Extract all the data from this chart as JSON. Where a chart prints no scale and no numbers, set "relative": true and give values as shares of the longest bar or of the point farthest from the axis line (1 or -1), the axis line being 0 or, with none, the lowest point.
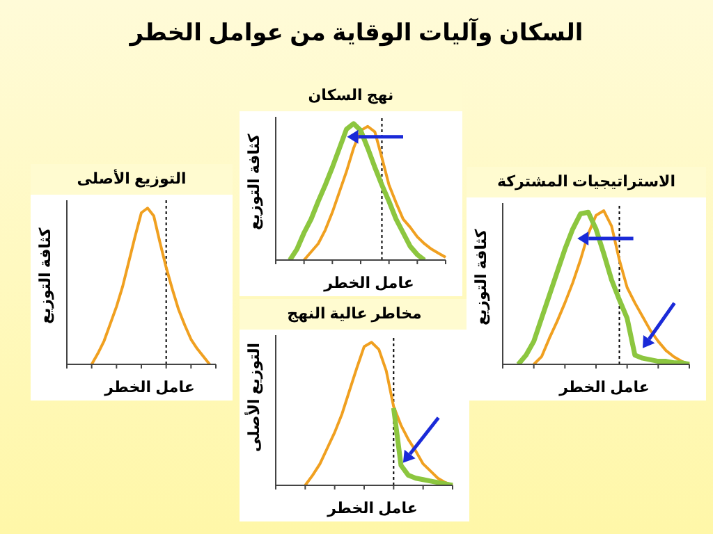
{
  "chart_data": [
    {
      "type": "other",
      "title": "السكان وآليات الوقاية من عوامل الخطر"
    },
    {
      "type": "line",
      "relative": true,
      "title": "التوزيع الأصلى",
      "xlabel": "عامل الخطر",
      "ylabel": "كثافة التوزيع",
      "categories": [
        null,
        null,
        null,
        null,
        null,
        null,
        null,
        null,
        null,
        null,
        null,
        null,
        null,
        null,
        null,
        null,
        null,
        null,
        null,
        null,
        null,
        null,
        null,
        null,
        null
      ],
      "legend": false,
      "grid": false,
      "marker": "none",
      "line_style": "solid",
      "series": [
        {
          "color": "#f0a020",
          "values": [
            null,
            null,
            null,
            null,
            0,
            0.07,
            0.15,
            0.26,
            0.37,
            0.5,
            0.66,
            0.82,
            0.97,
            1,
            0.95,
            0.78,
            0.62,
            0.48,
            0.35,
            0.25,
            0.16,
            0.1,
            0.05,
            0,
            null
          ]
        }
      ]
    },
    {
      "type": "line",
      "relative": true,
      "title": "نهج السكان",
      "xlabel": "عامل الخطر",
      "ylabel": "كثافة التوزيع",
      "categories": [
        null,
        null,
        null,
        null,
        null,
        null,
        null,
        null,
        null,
        null,
        null,
        null,
        null,
        null,
        null,
        null,
        null,
        null,
        null,
        null,
        null,
        null,
        null,
        null,
        null
      ],
      "legend": false,
      "grid": false,
      "marker": "none",
      "line_style": "solid",
      "series": [
        {
          "color": "#f0a020",
          "values": [
            null,
            null,
            null,
            null,
            0,
            0.06,
            0.12,
            0.22,
            0.35,
            0.5,
            0.65,
            0.82,
            0.95,
            0.98,
            0.94,
            0.75,
            0.55,
            0.42,
            0.3,
            0.24,
            0.17,
            0.12,
            0.08,
            0.05,
            0.02
          ]
        },
        {
          "color": "#8cc63f",
          "values": [
            null,
            null,
            0,
            0.08,
            0.2,
            0.3,
            0.43,
            0.55,
            0.68,
            0.82,
            0.96,
            1,
            0.95,
            0.82,
            0.68,
            0.55,
            0.43,
            0.3,
            0.2,
            0.1,
            0.04,
            0,
            null,
            null,
            null
          ]
        }
      ]
    },
    {
      "type": "line",
      "relative": true,
      "title": "مخاطر عالية النهج",
      "xlabel": "عامل الخطر",
      "ylabel": "التوزيع الأصلى",
      "categories": [
        null,
        null,
        null,
        null,
        null,
        null,
        null,
        null,
        null,
        null,
        null,
        null,
        null,
        null,
        null,
        null,
        null,
        null,
        null,
        null,
        null,
        null,
        null,
        null,
        null
      ],
      "legend": false,
      "grid": false,
      "marker": "none",
      "line_style": "solid",
      "series": [
        {
          "color": "#f0a020",
          "values": [
            null,
            null,
            null,
            null,
            0,
            0.07,
            0.15,
            0.26,
            0.37,
            0.5,
            0.66,
            0.82,
            0.97,
            1,
            0.95,
            0.8,
            0.55,
            0.42,
            0.32,
            0.24,
            0.15,
            0.1,
            0.05,
            0.02,
            0
          ]
        },
        {
          "color": "#8cc63f",
          "values": [
            null,
            null,
            null,
            null,
            null,
            null,
            null,
            null,
            null,
            null,
            null,
            null,
            null,
            null,
            null,
            null,
            0.54,
            0.14,
            0.07,
            0.05,
            0.04,
            0.03,
            0.02,
            0.01,
            0
          ]
        }
      ]
    },
    {
      "type": "line",
      "relative": true,
      "title": "الاستراتيجيات المشتركة",
      "xlabel": "عامل الخطر",
      "ylabel": "كثافة التوزيع",
      "categories": [
        null,
        null,
        null,
        null,
        null,
        null,
        null,
        null,
        null,
        null,
        null,
        null,
        null,
        null,
        null,
        null,
        null,
        null,
        null,
        null,
        null,
        null,
        null,
        null,
        null
      ],
      "legend": false,
      "grid": false,
      "marker": "none",
      "line_style": "solid",
      "series": [
        {
          "color": "#f0a020",
          "values": [
            null,
            null,
            null,
            null,
            0,
            0.05,
            0.17,
            0.28,
            0.4,
            0.53,
            0.68,
            0.85,
            0.97,
            1,
            0.9,
            0.68,
            0.5,
            0.4,
            0.31,
            0.22,
            0.15,
            0.09,
            0.05,
            0.02,
            0
          ]
        },
        {
          "color": "#8cc63f",
          "values": [
            null,
            null,
            0,
            0.06,
            0.15,
            0.3,
            0.45,
            0.6,
            0.75,
            0.88,
            0.98,
            0.99,
            0.88,
            0.72,
            0.55,
            0.42,
            0.3,
            0.06,
            0.04,
            0.03,
            0.02,
            0.02,
            0.01,
            0.01,
            0
          ]
        }
      ]
    }
  ]
}
